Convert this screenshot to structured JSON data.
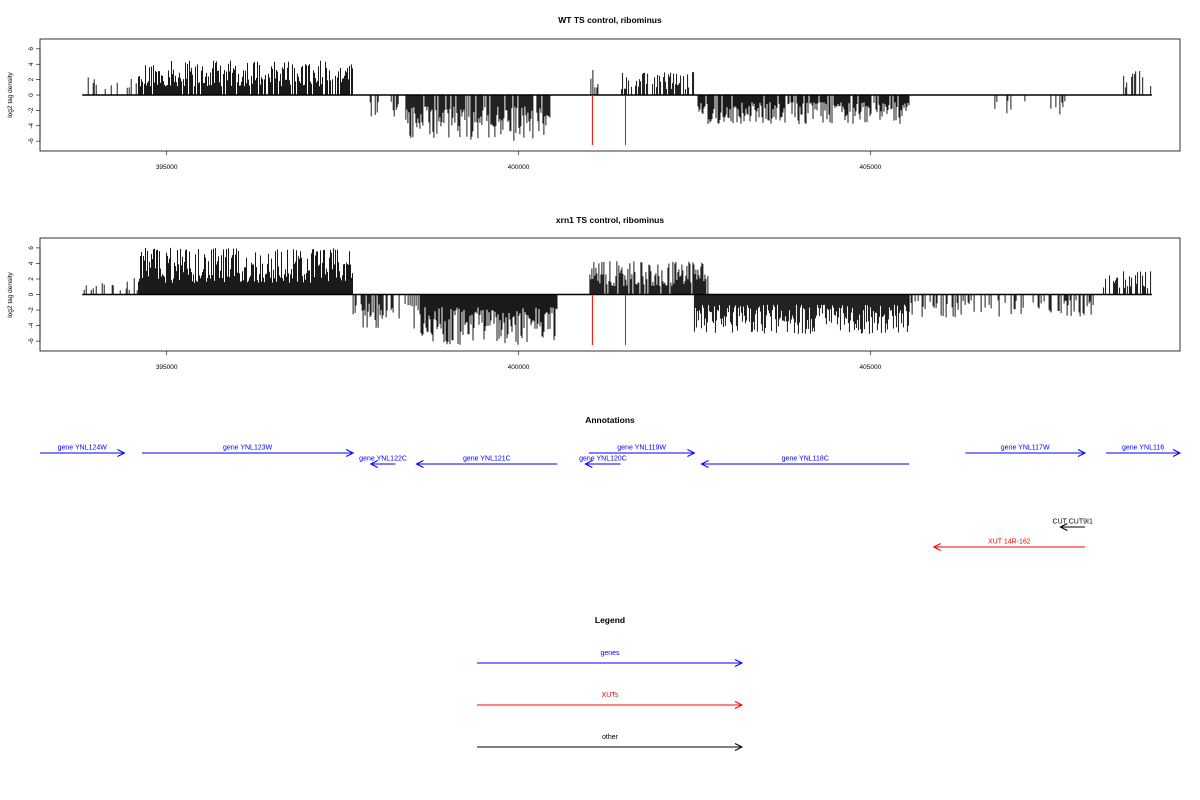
{
  "colors": {
    "genes": "#0000ff",
    "xuts": "#ff0000",
    "other": "#000000",
    "marker": "#ff0000",
    "signal": "#000000"
  },
  "chart_data": [
    {
      "type": "bar",
      "title": "WT TS control, ribominus",
      "ylabel": "log2 tag density",
      "ylim": [
        -6.5,
        6.5
      ],
      "xlim": [
        393200,
        409400
      ],
      "xticks": [
        "395000",
        "400000",
        "405000"
      ],
      "yticks": [
        "-6",
        "-4",
        "-2",
        "0",
        "2",
        "4",
        "6"
      ],
      "markers": [
        401050,
        401520
      ],
      "segments": [
        {
          "from": 393800,
          "to": 394600,
          "sign": 1,
          "max": 2.6,
          "density": 0.25
        },
        {
          "from": 394600,
          "to": 397650,
          "sign": 1,
          "max": 4.5,
          "density": 0.85
        },
        {
          "from": 397850,
          "to": 398300,
          "sign": -1,
          "max": 3.5,
          "density": 0.3
        },
        {
          "from": 398400,
          "to": 400450,
          "sign": -1,
          "max": 6.0,
          "density": 0.85
        },
        {
          "from": 401000,
          "to": 401150,
          "sign": 1,
          "max": 3.6,
          "density": 0.5
        },
        {
          "from": 401450,
          "to": 402550,
          "sign": 1,
          "max": 3.0,
          "density": 0.6
        },
        {
          "from": 402550,
          "to": 405550,
          "sign": -1,
          "max": 3.8,
          "density": 0.85
        },
        {
          "from": 406500,
          "to": 407800,
          "sign": -1,
          "max": 2.8,
          "density": 0.12
        },
        {
          "from": 408600,
          "to": 409000,
          "sign": 1,
          "max": 3.2,
          "density": 0.4
        }
      ]
    },
    {
      "type": "bar",
      "title": "xrn1 TS control, ribominus",
      "ylabel": "log2 tag density",
      "ylim": [
        -6.5,
        6.5
      ],
      "xlim": [
        393200,
        409400
      ],
      "xticks": [
        "395000",
        "400000",
        "405000"
      ],
      "yticks": [
        "-6",
        "-4",
        "-2",
        "0",
        "2",
        "4",
        "6"
      ],
      "markers": [
        401050,
        401520
      ],
      "segments": [
        {
          "from": 393800,
          "to": 394600,
          "sign": 1,
          "max": 2.2,
          "density": 0.3
        },
        {
          "from": 394600,
          "to": 397650,
          "sign": 1,
          "max": 6.0,
          "density": 1.0
        },
        {
          "from": 397650,
          "to": 398600,
          "sign": -1,
          "max": 4.5,
          "density": 0.5
        },
        {
          "from": 398600,
          "to": 400550,
          "sign": -1,
          "max": 6.5,
          "density": 1.0
        },
        {
          "from": 401000,
          "to": 402700,
          "sign": 1,
          "max": 4.3,
          "density": 0.9
        },
        {
          "from": 402500,
          "to": 405550,
          "sign": -1,
          "max": 5.2,
          "density": 1.0
        },
        {
          "from": 405550,
          "to": 408200,
          "sign": -1,
          "max": 3.0,
          "density": 0.35
        },
        {
          "from": 408300,
          "to": 409000,
          "sign": 1,
          "max": 3.0,
          "density": 0.5
        }
      ]
    }
  ],
  "annotations": {
    "title": "Annotations",
    "genes": [
      {
        "label": "gene YNL124W",
        "start": 393200,
        "end": 394400,
        "dir": 1,
        "lane": 0
      },
      {
        "label": "gene YNL123W",
        "start": 394650,
        "end": 397650,
        "dir": 1,
        "lane": 0
      },
      {
        "label": "gene YNL122C",
        "start": 397900,
        "end": 398250,
        "dir": -1,
        "lane": 1
      },
      {
        "label": "gene YNL121C",
        "start": 398550,
        "end": 400550,
        "dir": -1,
        "lane": 1
      },
      {
        "label": "gene YNL120C",
        "start": 400950,
        "end": 401450,
        "dir": -1,
        "lane": 1
      },
      {
        "label": "gene YNL119W",
        "start": 401000,
        "end": 402500,
        "dir": 1,
        "lane": 0
      },
      {
        "label": "gene YNL118C",
        "start": 402600,
        "end": 405550,
        "dir": -1,
        "lane": 1
      },
      {
        "label": "gene YNL117W",
        "start": 406350,
        "end": 408050,
        "dir": 1,
        "lane": 0
      },
      {
        "label": "gene YNL116",
        "start": 408350,
        "end": 409400,
        "dir": 1,
        "lane": 0
      }
    ],
    "other": [
      {
        "label": "CUT CUT9I1",
        "start": 407700,
        "end": 408050,
        "dir": -1
      }
    ],
    "xuts": [
      {
        "label": "XUT 14R-162",
        "start": 405900,
        "end": 408050,
        "dir": -1
      }
    ]
  },
  "legend": {
    "title": "Legend",
    "items": [
      {
        "label": "genes",
        "kind": "genes"
      },
      {
        "label": "XUTs",
        "kind": "xuts"
      },
      {
        "label": "other",
        "kind": "other"
      }
    ]
  }
}
